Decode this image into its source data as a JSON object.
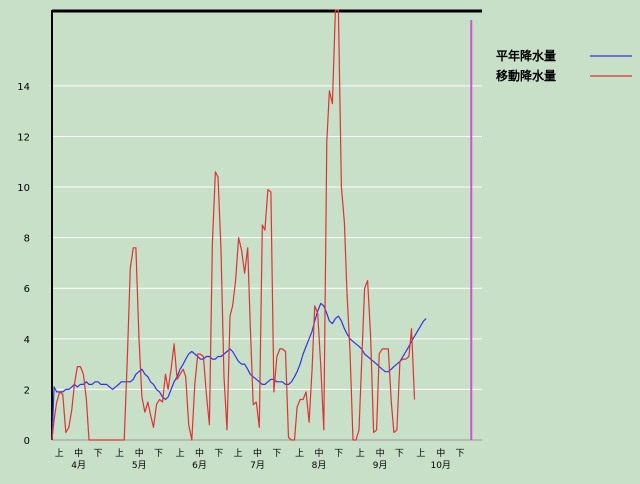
{
  "chart_data": {
    "type": "line",
    "ylim": [
      0,
      17
    ],
    "y_ticks": [
      0,
      2,
      4,
      6,
      8,
      10,
      12,
      14
    ],
    "x_range": [
      0,
      100
    ],
    "x_tick_groups": [
      {
        "month": "4月",
        "decades": [
          {
            "label": "上",
            "x": 1.7
          },
          {
            "label": "中",
            "x": 6.2
          },
          {
            "label": "下",
            "x": 10.7
          }
        ]
      },
      {
        "month": "5月",
        "decades": [
          {
            "label": "上",
            "x": 15.7
          },
          {
            "label": "中",
            "x": 20.3
          },
          {
            "label": "下",
            "x": 24.8
          }
        ]
      },
      {
        "month": "6月",
        "decades": [
          {
            "label": "上",
            "x": 29.8
          },
          {
            "label": "中",
            "x": 34.3
          },
          {
            "label": "下",
            "x": 38.8
          }
        ]
      },
      {
        "month": "7月",
        "decades": [
          {
            "label": "上",
            "x": 43.3
          },
          {
            "label": "中",
            "x": 47.8
          },
          {
            "label": "下",
            "x": 52.3
          }
        ]
      },
      {
        "month": "8月",
        "decades": [
          {
            "label": "上",
            "x": 57.6
          },
          {
            "label": "中",
            "x": 62.1
          },
          {
            "label": "下",
            "x": 66.7
          }
        ]
      },
      {
        "month": "9月",
        "decades": [
          {
            "label": "上",
            "x": 71.7
          },
          {
            "label": "中",
            "x": 76.3
          },
          {
            "label": "下",
            "x": 80.8
          }
        ]
      },
      {
        "month": "10月",
        "decades": [
          {
            "label": "上",
            "x": 85.8
          },
          {
            "label": "中",
            "x": 90.4
          },
          {
            "label": "下",
            "x": 94.9
          }
        ]
      }
    ],
    "current_marker_x": 97.5,
    "legend_position": "top-right",
    "grid": true,
    "series": [
      {
        "name": "平年降水量",
        "color": "#3333dd",
        "points": [
          [
            0,
            0
          ],
          [
            0.5,
            2.1
          ],
          [
            1.1,
            1.9
          ],
          [
            1.8,
            1.9
          ],
          [
            2.5,
            1.9
          ],
          [
            3.2,
            2
          ],
          [
            3.9,
            2
          ],
          [
            4.6,
            2.1
          ],
          [
            5.2,
            2.2
          ],
          [
            5.9,
            2.1
          ],
          [
            6.6,
            2.2
          ],
          [
            7.3,
            2.2
          ],
          [
            8,
            2.3
          ],
          [
            8.6,
            2.2
          ],
          [
            9.3,
            2.2
          ],
          [
            10,
            2.3
          ],
          [
            10.7,
            2.3
          ],
          [
            11.4,
            2.2
          ],
          [
            12,
            2.2
          ],
          [
            12.7,
            2.2
          ],
          [
            13.4,
            2.1
          ],
          [
            14.1,
            2
          ],
          [
            14.8,
            2.1
          ],
          [
            15.5,
            2.2
          ],
          [
            16.1,
            2.3
          ],
          [
            16.8,
            2.3
          ],
          [
            17.5,
            2.3
          ],
          [
            18.2,
            2.3
          ],
          [
            18.9,
            2.4
          ],
          [
            19.5,
            2.6
          ],
          [
            20.2,
            2.7
          ],
          [
            20.9,
            2.8
          ],
          [
            21.6,
            2.6
          ],
          [
            22.3,
            2.5
          ],
          [
            22.9,
            2.3
          ],
          [
            23.6,
            2.2
          ],
          [
            24.3,
            2
          ],
          [
            25,
            1.9
          ],
          [
            25.7,
            1.7
          ],
          [
            26.4,
            1.6
          ],
          [
            27,
            1.7
          ],
          [
            27.7,
            2
          ],
          [
            28.4,
            2.3
          ],
          [
            29.1,
            2.5
          ],
          [
            29.8,
            2.8
          ],
          [
            30.5,
            3
          ],
          [
            31.1,
            3.2
          ],
          [
            31.8,
            3.4
          ],
          [
            32.5,
            3.5
          ],
          [
            33.2,
            3.4
          ],
          [
            33.9,
            3.3
          ],
          [
            34.5,
            3.2
          ],
          [
            35.2,
            3.2
          ],
          [
            35.9,
            3.3
          ],
          [
            36.6,
            3.3
          ],
          [
            37.3,
            3.2
          ],
          [
            38,
            3.2
          ],
          [
            38.6,
            3.3
          ],
          [
            39.3,
            3.3
          ],
          [
            40,
            3.4
          ],
          [
            40.7,
            3.5
          ],
          [
            41.4,
            3.6
          ],
          [
            42,
            3.5
          ],
          [
            42.7,
            3.3
          ],
          [
            43.4,
            3.1
          ],
          [
            44.1,
            3
          ],
          [
            44.8,
            3
          ],
          [
            45.5,
            2.8
          ],
          [
            46.1,
            2.6
          ],
          [
            46.8,
            2.5
          ],
          [
            47.5,
            2.4
          ],
          [
            48.2,
            2.3
          ],
          [
            48.9,
            2.2
          ],
          [
            49.5,
            2.2
          ],
          [
            50.2,
            2.3
          ],
          [
            50.9,
            2.4
          ],
          [
            51.6,
            2.4
          ],
          [
            52.3,
            2.3
          ],
          [
            53,
            2.3
          ],
          [
            53.6,
            2.3
          ],
          [
            54.3,
            2.2
          ],
          [
            55,
            2.2
          ],
          [
            55.7,
            2.3
          ],
          [
            56.4,
            2.5
          ],
          [
            57,
            2.7
          ],
          [
            57.7,
            3
          ],
          [
            58.4,
            3.4
          ],
          [
            59.1,
            3.7
          ],
          [
            59.8,
            4
          ],
          [
            60.5,
            4.3
          ],
          [
            61.1,
            4.7
          ],
          [
            61.8,
            5.1
          ],
          [
            62.5,
            5.4
          ],
          [
            63.2,
            5.3
          ],
          [
            63.9,
            5
          ],
          [
            64.5,
            4.7
          ],
          [
            65.2,
            4.6
          ],
          [
            65.9,
            4.8
          ],
          [
            66.6,
            4.9
          ],
          [
            67.3,
            4.7
          ],
          [
            68,
            4.4
          ],
          [
            68.6,
            4.2
          ],
          [
            69.3,
            4
          ],
          [
            70,
            3.9
          ],
          [
            70.7,
            3.8
          ],
          [
            71.4,
            3.7
          ],
          [
            72,
            3.6
          ],
          [
            72.7,
            3.4
          ],
          [
            73.4,
            3.3
          ],
          [
            74.1,
            3.2
          ],
          [
            74.8,
            3.1
          ],
          [
            75.5,
            3
          ],
          [
            76.1,
            2.9
          ],
          [
            76.8,
            2.8
          ],
          [
            77.5,
            2.7
          ],
          [
            78.2,
            2.7
          ],
          [
            78.9,
            2.8
          ],
          [
            79.5,
            2.9
          ],
          [
            80.2,
            3
          ],
          [
            80.9,
            3.1
          ],
          [
            81.6,
            3.3
          ],
          [
            82.3,
            3.5
          ],
          [
            83,
            3.7
          ],
          [
            83.6,
            3.9
          ],
          [
            84.3,
            4.1
          ],
          [
            85,
            4.3
          ],
          [
            85.7,
            4.5
          ],
          [
            86.4,
            4.7
          ],
          [
            87,
            4.8
          ]
        ]
      },
      {
        "name": "移動降水量",
        "color": "#dd3333",
        "points": [
          [
            0,
            0
          ],
          [
            0.5,
            0.8
          ],
          [
            1.1,
            1.5
          ],
          [
            1.8,
            1.9
          ],
          [
            2.5,
            1.8
          ],
          [
            3.2,
            0.3
          ],
          [
            3.9,
            0.5
          ],
          [
            4.6,
            1.2
          ],
          [
            5.2,
            2.2
          ],
          [
            5.9,
            2.9
          ],
          [
            6.6,
            2.9
          ],
          [
            7.3,
            2.6
          ],
          [
            8,
            1.6
          ],
          [
            8.6,
            0
          ],
          [
            9.3,
            0
          ],
          [
            10,
            0
          ],
          [
            10.7,
            0
          ],
          [
            11.4,
            0
          ],
          [
            12,
            0
          ],
          [
            12.7,
            0
          ],
          [
            13.4,
            0
          ],
          [
            14.1,
            0
          ],
          [
            14.8,
            0
          ],
          [
            15.5,
            0
          ],
          [
            16.1,
            0
          ],
          [
            16.8,
            0
          ],
          [
            17.5,
            3.2
          ],
          [
            18.2,
            6.8
          ],
          [
            18.9,
            7.6
          ],
          [
            19.5,
            7.6
          ],
          [
            20.2,
            4.1
          ],
          [
            20.9,
            1.7
          ],
          [
            21.6,
            1.1
          ],
          [
            22.3,
            1.5
          ],
          [
            22.9,
            1
          ],
          [
            23.6,
            0.5
          ],
          [
            24.3,
            1.4
          ],
          [
            25,
            1.6
          ],
          [
            25.7,
            1.5
          ],
          [
            26.4,
            2.6
          ],
          [
            27,
            2
          ],
          [
            27.7,
            2.8
          ],
          [
            28.4,
            3.8
          ],
          [
            29.1,
            2.4
          ],
          [
            29.8,
            2.6
          ],
          [
            30.5,
            2.8
          ],
          [
            31.1,
            2.5
          ],
          [
            31.8,
            0.6
          ],
          [
            32.5,
            0
          ],
          [
            33.2,
            2.2
          ],
          [
            33.9,
            3.4
          ],
          [
            34.5,
            3.4
          ],
          [
            35.2,
            3.3
          ],
          [
            35.9,
            1.8
          ],
          [
            36.6,
            0.6
          ],
          [
            37.3,
            7.8
          ],
          [
            38,
            10.6
          ],
          [
            38.6,
            10.4
          ],
          [
            39.3,
            7.5
          ],
          [
            40,
            2.5
          ],
          [
            40.7,
            0.4
          ],
          [
            41.4,
            4.9
          ],
          [
            42,
            5.3
          ],
          [
            42.7,
            6.3
          ],
          [
            43.4,
            8
          ],
          [
            44.1,
            7.5
          ],
          [
            44.8,
            6.6
          ],
          [
            45.5,
            7.6
          ],
          [
            46.1,
            4.6
          ],
          [
            46.8,
            1.4
          ],
          [
            47.5,
            1.5
          ],
          [
            48.2,
            0.5
          ],
          [
            48.9,
            8.5
          ],
          [
            49.5,
            8.3
          ],
          [
            50.2,
            9.9
          ],
          [
            50.9,
            9.8
          ],
          [
            51.6,
            1.9
          ],
          [
            52.3,
            3.3
          ],
          [
            53,
            3.6
          ],
          [
            53.6,
            3.6
          ],
          [
            54.3,
            3.5
          ],
          [
            55,
            0.1
          ],
          [
            55.7,
            0
          ],
          [
            56.4,
            0
          ],
          [
            57,
            1.3
          ],
          [
            57.7,
            1.6
          ],
          [
            58.4,
            1.6
          ],
          [
            59.1,
            1.9
          ],
          [
            59.8,
            0.7
          ],
          [
            60.5,
            2.8
          ],
          [
            61.1,
            5.3
          ],
          [
            61.8,
            5
          ],
          [
            62.5,
            2.9
          ],
          [
            63.2,
            0.4
          ],
          [
            63.9,
            11.8
          ],
          [
            64.5,
            13.8
          ],
          [
            65.2,
            13.3
          ],
          [
            65.9,
            17
          ],
          [
            66.6,
            17
          ],
          [
            67.3,
            10
          ],
          [
            68,
            8.6
          ],
          [
            68.6,
            5.8
          ],
          [
            69.3,
            3.5
          ],
          [
            70,
            0
          ],
          [
            70.7,
            0
          ],
          [
            71.4,
            0.4
          ],
          [
            72,
            3
          ],
          [
            72.7,
            6
          ],
          [
            73.4,
            6.3
          ],
          [
            74.1,
            4.1
          ],
          [
            74.8,
            0.3
          ],
          [
            75.5,
            0.4
          ],
          [
            76.1,
            3.4
          ],
          [
            76.8,
            3.6
          ],
          [
            77.5,
            3.6
          ],
          [
            78.2,
            3.6
          ],
          [
            78.9,
            1.5
          ],
          [
            79.5,
            0.3
          ],
          [
            80.2,
            0.4
          ],
          [
            80.9,
            3.1
          ],
          [
            81.6,
            3.2
          ],
          [
            82.3,
            3.2
          ],
          [
            83,
            3.3
          ],
          [
            83.6,
            4.4
          ],
          [
            84.3,
            1.6
          ]
        ]
      }
    ]
  }
}
